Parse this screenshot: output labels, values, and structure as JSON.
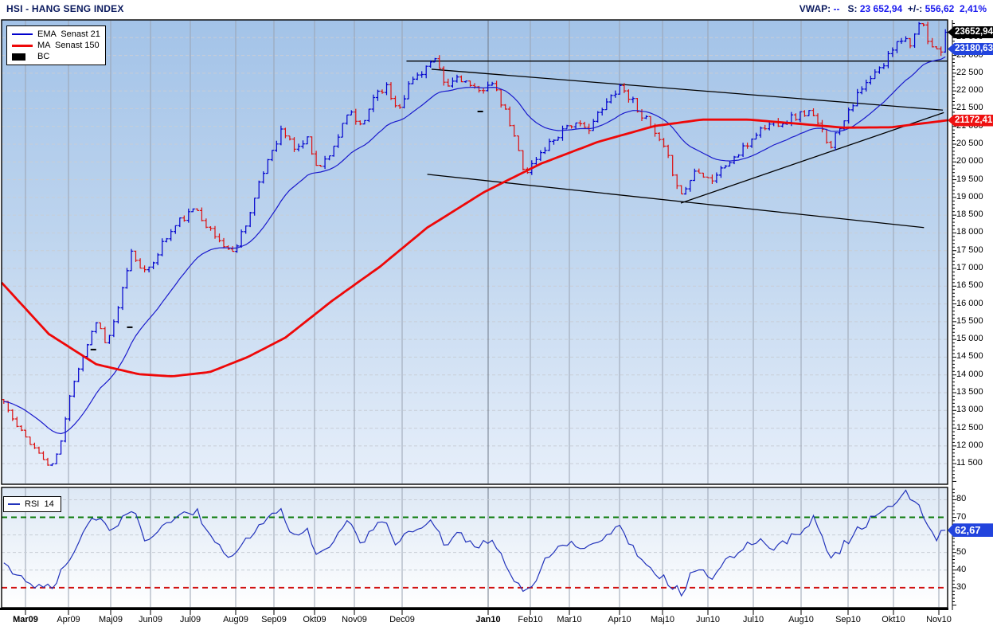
{
  "header": {
    "title": "HSI - HANG SENG INDEX",
    "vwap_label": "VWAP:",
    "vwap_value": "--",
    "last_label": "S:",
    "last_value": "23 652,94",
    "change_label": "+/-:",
    "change_value": "556,62",
    "change_percent": "2,41%"
  },
  "legend_main": {
    "items": [
      {
        "label": "EMA  Senast 21",
        "marker": "line-thin",
        "color": "#0000cc"
      },
      {
        "label": "MA  Senast 150",
        "marker": "line-thick",
        "color": "#ee0808"
      },
      {
        "label": "BC",
        "marker": "box",
        "color": "#000000"
      }
    ]
  },
  "legend_rsi": {
    "items": [
      {
        "label": "RSI  14",
        "marker": "line-thin",
        "color": "#2233bb"
      }
    ]
  },
  "price_tags": [
    {
      "text": "23652,94",
      "value": 23652.94,
      "color": "#000000"
    },
    {
      "text": "23180,63",
      "value": 23180.63,
      "color": "#2244dd"
    },
    {
      "text": "21172,41",
      "value": 21172.41,
      "color": "#ee1111"
    }
  ],
  "rsi_tag": {
    "text": "62,67",
    "value": 62.67,
    "color": "#2244dd"
  },
  "chart_data": {
    "type": "candlestick",
    "title": "HSI - HANG SENG INDEX",
    "panels": [
      "price",
      "rsi"
    ],
    "x_months": [
      {
        "label": "Mar09",
        "t": 0.02525,
        "bold": true
      },
      {
        "label": "Apr09",
        "t": 0.07071,
        "bold": false
      },
      {
        "label": "Maj09",
        "t": 0.11532,
        "bold": false
      },
      {
        "label": "Jun09",
        "t": 0.15741,
        "bold": false
      },
      {
        "label": "Jul09",
        "t": 0.19949,
        "bold": false
      },
      {
        "label": "Aug09",
        "t": 0.24747,
        "bold": false
      },
      {
        "label": "Sep09",
        "t": 0.28788,
        "bold": false
      },
      {
        "label": "Okt09",
        "t": 0.33081,
        "bold": false
      },
      {
        "label": "Nov09",
        "t": 0.3729,
        "bold": false
      },
      {
        "label": "Dec09",
        "t": 0.4234,
        "bold": false
      },
      {
        "label": "Jan10",
        "t": 0.51431,
        "bold": true
      },
      {
        "label": "Feb10",
        "t": 0.55892,
        "bold": false
      },
      {
        "label": "Mar10",
        "t": 0.60017,
        "bold": false
      },
      {
        "label": "Apr10",
        "t": 0.6532,
        "bold": false
      },
      {
        "label": "Maj10",
        "t": 0.69865,
        "bold": false
      },
      {
        "label": "Jun10",
        "t": 0.74663,
        "bold": false
      },
      {
        "label": "Jul10",
        "t": 0.79461,
        "bold": false
      },
      {
        "label": "Aug10",
        "t": 0.84512,
        "bold": false
      },
      {
        "label": "Sep10",
        "t": 0.89478,
        "bold": false
      },
      {
        "label": "Okt10",
        "t": 0.94276,
        "bold": false
      },
      {
        "label": "Nov10",
        "t": 0.99074,
        "bold": false
      }
    ],
    "price_axis": {
      "min": 10920,
      "max": 24000,
      "label_from": 11500,
      "label_to": 23500,
      "step": 500,
      "minor_step": 100
    },
    "rsi_axis": {
      "min": 18.6,
      "max": 87,
      "ticks": [
        30,
        40,
        50,
        60,
        70,
        80
      ],
      "minor_step": 2,
      "overbought": 70,
      "oversold": 30
    },
    "close_keypoints": [
      [
        0.0,
        13250
      ],
      [
        0.012,
        12600
      ],
      [
        0.028,
        12100
      ],
      [
        0.05,
        11350
      ],
      [
        0.062,
        12200
      ],
      [
        0.071,
        13600
      ],
      [
        0.085,
        14600
      ],
      [
        0.099,
        15600
      ],
      [
        0.108,
        14850
      ],
      [
        0.12,
        15650
      ],
      [
        0.135,
        17480
      ],
      [
        0.152,
        16820
      ],
      [
        0.168,
        17700
      ],
      [
        0.187,
        18350
      ],
      [
        0.205,
        18680
      ],
      [
        0.222,
        17950
      ],
      [
        0.243,
        17430
      ],
      [
        0.262,
        18600
      ],
      [
        0.282,
        20200
      ],
      [
        0.295,
        20900
      ],
      [
        0.31,
        20350
      ],
      [
        0.322,
        20650
      ],
      [
        0.335,
        19780
      ],
      [
        0.35,
        20450
      ],
      [
        0.368,
        21420
      ],
      [
        0.38,
        20900
      ],
      [
        0.393,
        21900
      ],
      [
        0.405,
        22150
      ],
      [
        0.418,
        21500
      ],
      [
        0.432,
        22250
      ],
      [
        0.445,
        22600
      ],
      [
        0.457,
        22860
      ],
      [
        0.47,
        22050
      ],
      [
        0.483,
        22450
      ],
      [
        0.503,
        21900
      ],
      [
        0.516,
        22320
      ],
      [
        0.535,
        21250
      ],
      [
        0.554,
        19680
      ],
      [
        0.575,
        20400
      ],
      [
        0.6,
        21100
      ],
      [
        0.618,
        20900
      ],
      [
        0.637,
        21500
      ],
      [
        0.653,
        22190
      ],
      [
        0.67,
        21650
      ],
      [
        0.686,
        21000
      ],
      [
        0.703,
        20250
      ],
      [
        0.72,
        19050
      ],
      [
        0.736,
        19850
      ],
      [
        0.751,
        19480
      ],
      [
        0.768,
        19950
      ],
      [
        0.784,
        20300
      ],
      [
        0.8,
        20850
      ],
      [
        0.815,
        21080
      ],
      [
        0.832,
        21200
      ],
      [
        0.855,
        21420
      ],
      [
        0.878,
        20480
      ],
      [
        0.898,
        21550
      ],
      [
        0.918,
        22250
      ],
      [
        0.935,
        22750
      ],
      [
        0.95,
        23550
      ],
      [
        0.962,
        23380
      ],
      [
        0.975,
        23880
      ],
      [
        0.985,
        23100
      ],
      [
        1.0,
        23652.94
      ]
    ],
    "ma150_keypoints": [
      [
        0.0,
        16600
      ],
      [
        0.05,
        15150
      ],
      [
        0.1,
        14300
      ],
      [
        0.145,
        14020
      ],
      [
        0.18,
        13960
      ],
      [
        0.22,
        14080
      ],
      [
        0.26,
        14500
      ],
      [
        0.3,
        15050
      ],
      [
        0.35,
        16100
      ],
      [
        0.4,
        17050
      ],
      [
        0.45,
        18150
      ],
      [
        0.51,
        19150
      ],
      [
        0.57,
        19950
      ],
      [
        0.63,
        20560
      ],
      [
        0.69,
        21010
      ],
      [
        0.74,
        21190
      ],
      [
        0.79,
        21190
      ],
      [
        0.84,
        21080
      ],
      [
        0.89,
        20965
      ],
      [
        0.94,
        20975
      ],
      [
        1.0,
        21172.41
      ]
    ],
    "rsi_keypoints": [
      [
        0.0,
        45
      ],
      [
        0.02,
        34
      ],
      [
        0.05,
        29
      ],
      [
        0.065,
        42
      ],
      [
        0.085,
        62
      ],
      [
        0.1,
        71
      ],
      [
        0.115,
        60
      ],
      [
        0.135,
        76
      ],
      [
        0.15,
        58
      ],
      [
        0.17,
        65
      ],
      [
        0.19,
        72
      ],
      [
        0.205,
        74
      ],
      [
        0.222,
        55
      ],
      [
        0.243,
        46
      ],
      [
        0.262,
        60
      ],
      [
        0.282,
        71
      ],
      [
        0.295,
        73
      ],
      [
        0.31,
        58
      ],
      [
        0.322,
        62
      ],
      [
        0.335,
        47
      ],
      [
        0.35,
        57
      ],
      [
        0.368,
        68
      ],
      [
        0.38,
        56
      ],
      [
        0.393,
        65
      ],
      [
        0.405,
        67
      ],
      [
        0.418,
        54
      ],
      [
        0.432,
        62
      ],
      [
        0.445,
        66
      ],
      [
        0.457,
        68
      ],
      [
        0.47,
        53
      ],
      [
        0.483,
        60
      ],
      [
        0.503,
        52
      ],
      [
        0.516,
        58
      ],
      [
        0.535,
        42
      ],
      [
        0.554,
        25
      ],
      [
        0.575,
        45
      ],
      [
        0.6,
        57
      ],
      [
        0.618,
        52
      ],
      [
        0.637,
        60
      ],
      [
        0.653,
        65
      ],
      [
        0.67,
        52
      ],
      [
        0.686,
        42
      ],
      [
        0.703,
        34
      ],
      [
        0.72,
        27
      ],
      [
        0.736,
        43
      ],
      [
        0.751,
        33
      ],
      [
        0.768,
        45
      ],
      [
        0.784,
        52
      ],
      [
        0.8,
        58
      ],
      [
        0.815,
        53
      ],
      [
        0.832,
        57
      ],
      [
        0.845,
        62
      ],
      [
        0.862,
        70
      ],
      [
        0.878,
        45
      ],
      [
        0.898,
        58
      ],
      [
        0.918,
        68
      ],
      [
        0.935,
        74
      ],
      [
        0.95,
        79
      ],
      [
        0.958,
        83
      ],
      [
        0.968,
        77
      ],
      [
        0.978,
        71
      ],
      [
        0.988,
        58
      ],
      [
        1.0,
        62.67
      ]
    ],
    "trendlines": [
      {
        "name": "horizontal-resistance",
        "points": [
          [
            0.428,
            22840
          ],
          [
            1.0,
            22840
          ]
        ]
      },
      {
        "name": "descending-upper-channel",
        "points": [
          [
            0.4545,
            22610
          ],
          [
            0.995,
            21460
          ]
        ]
      },
      {
        "name": "descending-lower-channel",
        "points": [
          [
            0.45,
            19650
          ],
          [
            0.975,
            18150
          ]
        ]
      },
      {
        "name": "rising-support",
        "points": [
          [
            0.718,
            18840
          ],
          [
            0.996,
            21390
          ]
        ]
      }
    ],
    "bc_markers": [
      [
        0.097,
        14714
      ],
      [
        0.1355,
        15342
      ],
      [
        0.506,
        21420
      ]
    ],
    "indicators": {
      "ema_period": 21,
      "ma_period": 150,
      "rsi_period": 14
    },
    "last": {
      "close": 23652.94,
      "prev_close": 23096.32,
      "change": 556.62,
      "change_pct": 2.41,
      "ema21": 23180.63,
      "ma150": 21172.41,
      "rsi14": 62.67
    },
    "render": {
      "bars": 215,
      "seed": 11,
      "noise_pct": 0.6,
      "range_pct": 0.5
    },
    "colors": {
      "up": "#0000cd",
      "down": "#dc1010",
      "ema": "#1a1acc",
      "ma": "#ee0808",
      "rsi": "#2233bb",
      "trend": "#000000",
      "grid_v": "#9aa3b2",
      "grid_v_year": "#6f7988",
      "grid_dash": "#c8cdd6",
      "overbought": "#0a7a0a",
      "oversold": "#d01010",
      "bg_main_top": "#a3c3e8",
      "bg_main_mid": "#bdd4ee",
      "bg_main_bottom": "#e7effa",
      "bg_rsi_top": "#dde8f5",
      "bg_rsi_bottom": "#ffffff"
    }
  }
}
